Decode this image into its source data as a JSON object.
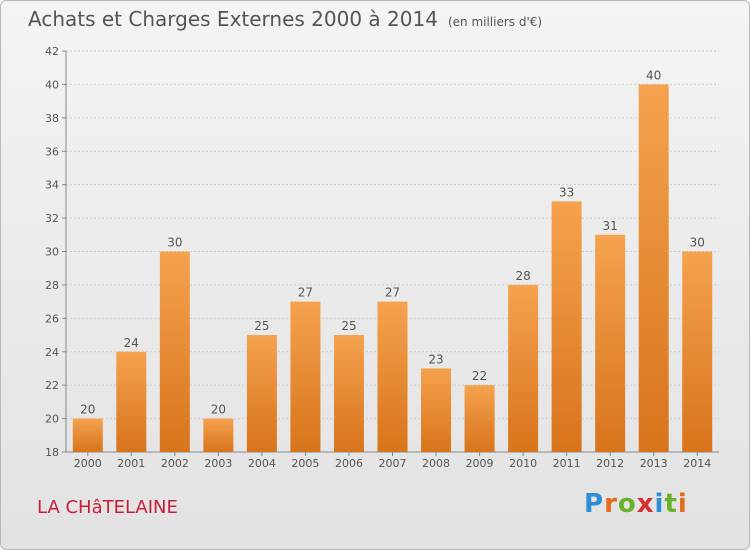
{
  "header": {
    "title": "Achats et Charges Externes 2000 à 2014",
    "subtitle": "(en milliers d'€)"
  },
  "footer": {
    "place": "LA CHâTELAINE",
    "brand": "Proxiti"
  },
  "colors": {
    "bar_top": "#f5a24e",
    "bar_bottom": "#d8741c",
    "grid": "#cccccc",
    "place": "#c8203c"
  },
  "chart_data": {
    "type": "bar",
    "title": "Achats et Charges Externes 2000 à 2014",
    "subtitle": "(en milliers d'€)",
    "xlabel": "",
    "ylabel": "",
    "categories": [
      "2000",
      "2001",
      "2002",
      "2003",
      "2004",
      "2005",
      "2006",
      "2007",
      "2008",
      "2009",
      "2010",
      "2011",
      "2012",
      "2013",
      "2014"
    ],
    "values": [
      20,
      24,
      30,
      20,
      25,
      27,
      25,
      27,
      23,
      22,
      28,
      33,
      31,
      40,
      30
    ],
    "ylim": [
      18,
      42
    ],
    "yticks": [
      18,
      20,
      22,
      24,
      26,
      28,
      30,
      32,
      34,
      36,
      38,
      40,
      42
    ],
    "grid": true,
    "data_labels": true
  }
}
